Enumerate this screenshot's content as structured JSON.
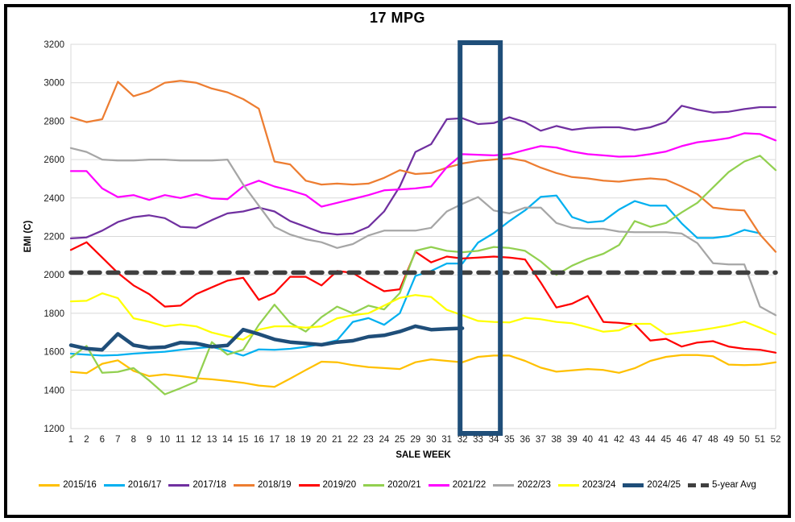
{
  "title": "17 MPG",
  "y_axis": {
    "label": "EMI (C)",
    "min": 1200,
    "max": 3200,
    "step": 200
  },
  "x_axis": {
    "label": "SALE WEEK"
  },
  "colors": {
    "gridline": "#D9D9D9",
    "plot_border": "#D9D9D9",
    "tick_text": "#1a1a1a",
    "highlight_box": "#1F4E79"
  },
  "highlight_box": {
    "from_week": 33,
    "to_week": 34
  },
  "chart_data": {
    "type": "line",
    "title": "17 MPG",
    "xlabel": "SALE WEEK",
    "ylabel": "EMI (C)",
    "ylim": [
      1200,
      3200
    ],
    "grid": true,
    "legend_position": "bottom",
    "x": [
      1,
      2,
      6,
      7,
      8,
      9,
      10,
      11,
      12,
      13,
      14,
      15,
      16,
      17,
      18,
      19,
      20,
      21,
      22,
      23,
      24,
      25,
      29,
      30,
      31,
      32,
      33,
      34,
      35,
      36,
      37,
      38,
      39,
      40,
      41,
      42,
      43,
      44,
      45,
      46,
      47,
      48,
      49,
      50,
      51,
      52
    ],
    "series": [
      {
        "name": "2015/16",
        "color": "#FFC000",
        "width": 2.25,
        "values": [
          1495,
          1488,
          1537,
          1555,
          1500,
          1473,
          1482,
          1473,
          1462,
          1456,
          1448,
          1438,
          1424,
          1417,
          1460,
          1505,
          1548,
          1545,
          1530,
          1520,
          1515,
          1510,
          1545,
          1560,
          1552,
          1545,
          1573,
          1580,
          1580,
          1552,
          1517,
          1496,
          1503,
          1510,
          1505,
          1490,
          1514,
          1552,
          1573,
          1583,
          1583,
          1576,
          1533,
          1530,
          1533,
          1545
        ]
      },
      {
        "name": "2016/17",
        "color": "#00B0F0",
        "width": 2.25,
        "values": [
          1590,
          1585,
          1580,
          1583,
          1590,
          1595,
          1600,
          1610,
          1618,
          1625,
          1605,
          1580,
          1612,
          1610,
          1615,
          1625,
          1640,
          1660,
          1755,
          1775,
          1740,
          1800,
          1995,
          2020,
          2059,
          2059,
          2168,
          2217,
          2280,
          2336,
          2406,
          2413,
          2301,
          2273,
          2280,
          2340,
          2384,
          2360,
          2360,
          2268,
          2192,
          2192,
          2202,
          2234,
          2216,
          null
        ]
      },
      {
        "name": "2017/18",
        "color": "#7030A0",
        "width": 2.25,
        "values": [
          2190,
          2195,
          2230,
          2275,
          2300,
          2310,
          2295,
          2250,
          2245,
          2285,
          2320,
          2330,
          2350,
          2330,
          2280,
          2250,
          2220,
          2210,
          2215,
          2250,
          2330,
          2460,
          2640,
          2680,
          2810,
          2815,
          2785,
          2790,
          2820,
          2795,
          2750,
          2775,
          2755,
          2765,
          2768,
          2768,
          2754,
          2768,
          2796,
          2880,
          2860,
          2845,
          2849,
          2863,
          2873,
          2873
        ]
      },
      {
        "name": "2018/19",
        "color": "#ED7D31",
        "width": 2.25,
        "values": [
          2820,
          2795,
          2810,
          3005,
          2930,
          2955,
          3000,
          3010,
          3000,
          2970,
          2950,
          2915,
          2865,
          2590,
          2575,
          2490,
          2470,
          2475,
          2470,
          2475,
          2505,
          2545,
          2525,
          2530,
          2558,
          2580,
          2593,
          2600,
          2607,
          2593,
          2558,
          2530,
          2509,
          2502,
          2490,
          2485,
          2495,
          2502,
          2495,
          2460,
          2420,
          2350,
          2340,
          2335,
          2210,
          2120
        ]
      },
      {
        "name": "2019/20",
        "color": "#FF0000",
        "width": 2.25,
        "values": [
          2130,
          2170,
          2090,
          2010,
          1945,
          1900,
          1835,
          1840,
          1900,
          1935,
          1970,
          1985,
          1870,
          1905,
          1990,
          1990,
          1945,
          2020,
          2010,
          1960,
          1915,
          1925,
          2120,
          2065,
          2095,
          2085,
          2090,
          2095,
          2090,
          2080,
          1960,
          1830,
          1850,
          1890,
          1755,
          1750,
          1742,
          1658,
          1667,
          1627,
          1648,
          1655,
          1627,
          1615,
          1610,
          1595
        ]
      },
      {
        "name": "2020/21",
        "color": "#92D050",
        "width": 2.25,
        "values": [
          1570,
          1630,
          1490,
          1495,
          1515,
          1450,
          1378,
          1410,
          1445,
          1650,
          1585,
          1610,
          1740,
          1845,
          1750,
          1705,
          1780,
          1835,
          1800,
          1840,
          1820,
          1905,
          2125,
          2145,
          2125,
          2118,
          2125,
          2145,
          2140,
          2125,
          2070,
          2000,
          2048,
          2083,
          2110,
          2155,
          2280,
          2250,
          2270,
          2325,
          2375,
          2455,
          2535,
          2590,
          2620,
          2545
        ]
      },
      {
        "name": "2021/22",
        "color": "#FF00FF",
        "width": 2.25,
        "values": [
          2540,
          2540,
          2450,
          2405,
          2415,
          2390,
          2415,
          2400,
          2420,
          2398,
          2394,
          2460,
          2490,
          2460,
          2440,
          2415,
          2355,
          2375,
          2395,
          2415,
          2440,
          2445,
          2450,
          2460,
          2560,
          2628,
          2625,
          2622,
          2628,
          2650,
          2670,
          2663,
          2642,
          2628,
          2622,
          2615,
          2617,
          2628,
          2642,
          2670,
          2690,
          2700,
          2712,
          2737,
          2733,
          2700
        ]
      },
      {
        "name": "2022/23",
        "color": "#A6A6A6",
        "width": 2.25,
        "values": [
          2660,
          2640,
          2600,
          2595,
          2595,
          2600,
          2600,
          2595,
          2595,
          2595,
          2600,
          2470,
          2360,
          2250,
          2210,
          2185,
          2170,
          2140,
          2160,
          2205,
          2230,
          2230,
          2230,
          2245,
          2330,
          2370,
          2405,
          2335,
          2320,
          2350,
          2350,
          2270,
          2245,
          2240,
          2240,
          2225,
          2222,
          2222,
          2222,
          2215,
          2165,
          2061,
          2054,
          2054,
          1835,
          1790
        ]
      },
      {
        "name": "2023/24",
        "color": "#FFFF00",
        "width": 2.25,
        "values": [
          1862,
          1865,
          1904,
          1879,
          1774,
          1756,
          1732,
          1742,
          1732,
          1700,
          1680,
          1663,
          1715,
          1732,
          1732,
          1725,
          1732,
          1774,
          1790,
          1800,
          1840,
          1880,
          1895,
          1885,
          1818,
          1790,
          1760,
          1755,
          1752,
          1776,
          1769,
          1755,
          1748,
          1727,
          1704,
          1711,
          1745,
          1745,
          1690,
          1700,
          1710,
          1723,
          1737,
          1757,
          1725,
          1690
        ]
      },
      {
        "name": "2024/25",
        "color": "#1F4E79",
        "width": 4.5,
        "values": [
          1634,
          1616,
          1610,
          1693,
          1634,
          1620,
          1624,
          1648,
          1643,
          1626,
          1633,
          1715,
          1692,
          1664,
          1650,
          1643,
          1636,
          1650,
          1657,
          1678,
          1685,
          1705,
          1733,
          1715,
          1719,
          1722,
          null,
          null,
          null,
          null,
          null,
          null,
          null,
          null,
          null,
          null,
          null,
          null,
          null,
          null,
          null,
          null,
          null,
          null,
          null,
          null
        ]
      },
      {
        "name": "5-year Avg",
        "color": "#404040",
        "width": 5.5,
        "dash": [
          13,
          10
        ],
        "constant": 2012
      }
    ]
  }
}
